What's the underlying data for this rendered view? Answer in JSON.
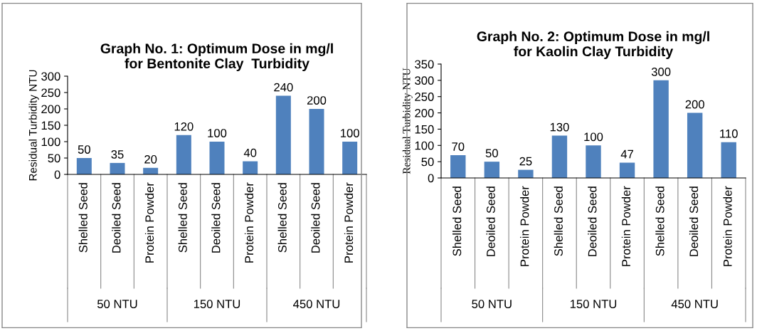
{
  "chart_data": [
    {
      "type": "bar",
      "title": "Graph No. 1: Optimum Dose in mg/l\nfor Bentonite Clay  Turbidity",
      "ylabel": "Residual Turbidity NTU",
      "categories": [
        "Shelled Seed",
        "Deoiled Seed",
        "Protein Powder",
        "Shelled Seed",
        "Deoiled Seed",
        "Protein Powder",
        "Shelled Seed",
        "Deoiled Seed",
        "Protein Powder"
      ],
      "values": [
        50,
        35,
        20,
        120,
        100,
        40,
        240,
        200,
        100
      ],
      "color": "#4f81bd",
      "ylim": [
        0,
        300
      ],
      "yticks": [
        0,
        50,
        100,
        150,
        200,
        250,
        300
      ],
      "data_labels": true,
      "grid": false,
      "legend": false,
      "annotations": [
        "50 NTU",
        "150 NTU",
        "450 NTU"
      ]
    },
    {
      "type": "bar",
      "title": "Graph No. 2: Optimum Dose in mg/l\nfor Kaolin Clay Turbidity",
      "ylabel": "Residual Turbidity NTU",
      "categories": [
        "Shelled Seed",
        "Deoiled Seed",
        "Protein Powder",
        "Shelled Seed",
        "Deoiled Seed",
        "Protein Powder",
        "Shelled Seed",
        "Deoiled Seed",
        "Protein Powder"
      ],
      "values": [
        70,
        50,
        25,
        130,
        100,
        47,
        300,
        200,
        110
      ],
      "color": "#4f81bd",
      "ylim": [
        0,
        350
      ],
      "yticks": [
        0,
        50,
        100,
        150,
        200,
        250,
        300,
        350
      ],
      "data_labels": true,
      "grid": false,
      "legend": false,
      "annotations": [
        "50 NTU",
        "150 NTU",
        "450 NTU"
      ]
    }
  ]
}
